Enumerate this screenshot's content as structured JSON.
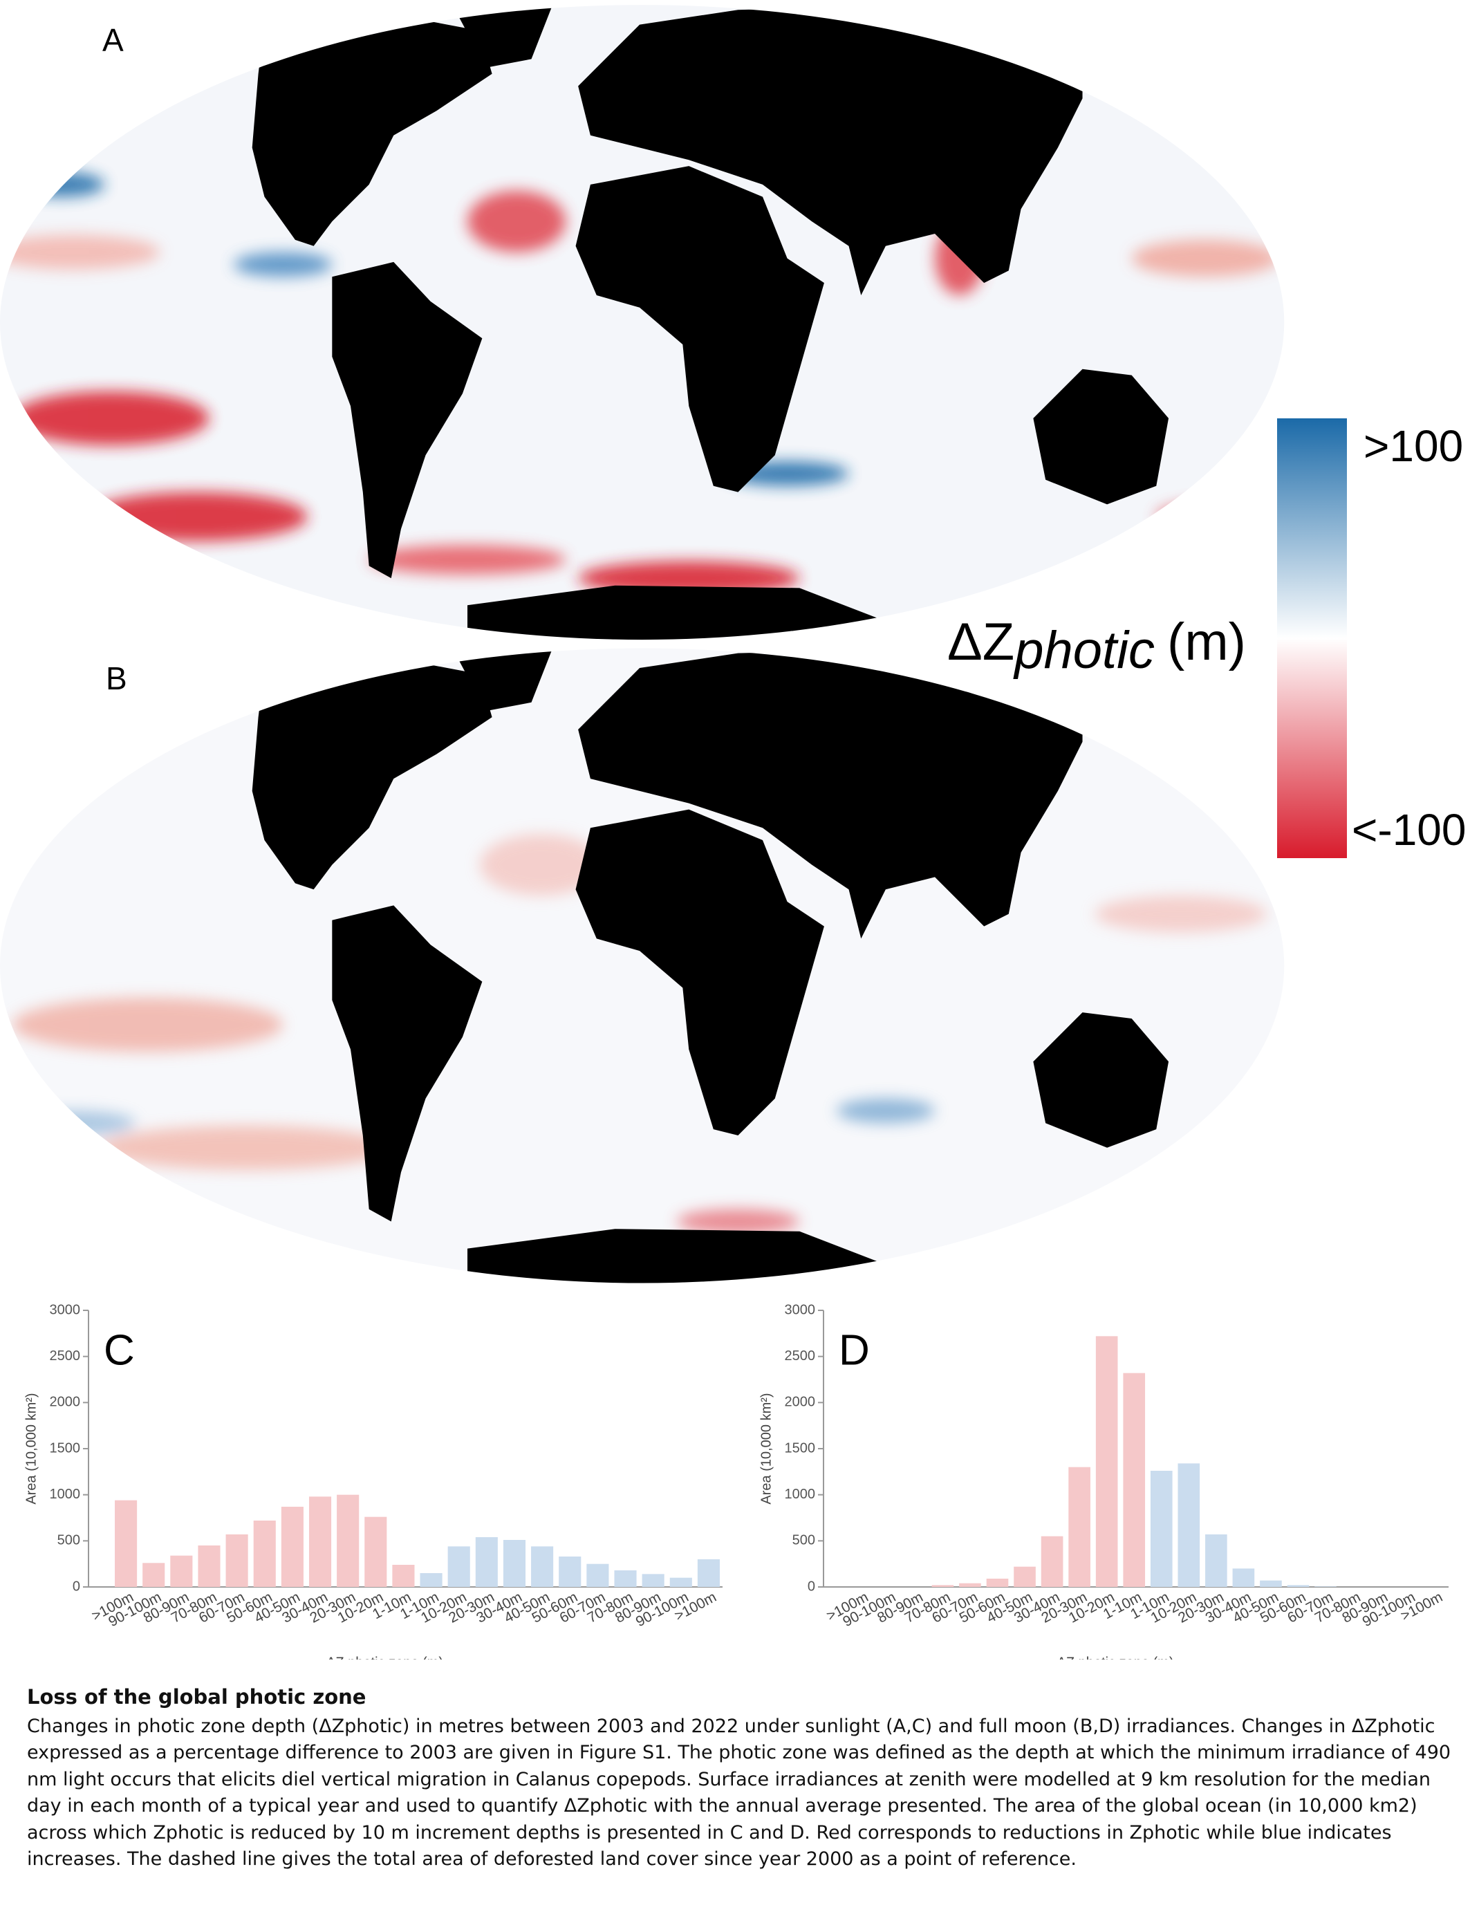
{
  "panels": {
    "a": "A",
    "b": "B"
  },
  "colorbar": {
    "max_label": ">100",
    "min_label": "<-100",
    "label_main": "ΔZ",
    "label_sub": "photic",
    "label_unit": "(m)",
    "colors": [
      "#1b6aa8",
      "#ffffff",
      "#d81b2c"
    ]
  },
  "chart_data": [
    {
      "type": "bar",
      "title": "C",
      "xlabel": "ΔZ photic zone (m)",
      "ylabel": "Area (10,000 km²)",
      "categories": [
        ">100m",
        "90-100m",
        "80-90m",
        "70-80m",
        "60-70m",
        "50-60m",
        "40-50m",
        "30-40m",
        "20-30m",
        "10-20m",
        "1-10m",
        "1-10m",
        "10-20m",
        "20-30m",
        "30-40m",
        "40-50m",
        "50-60m",
        "60-70m",
        "70-80m",
        "80-90m",
        "90-100m",
        ">100m"
      ],
      "values": [
        940,
        260,
        340,
        450,
        570,
        720,
        870,
        980,
        1000,
        760,
        240,
        150,
        440,
        540,
        510,
        440,
        330,
        250,
        180,
        140,
        100,
        300
      ],
      "colors": [
        "#f5c8c9",
        "#f5c8c9",
        "#f5c8c9",
        "#f5c8c9",
        "#f5c8c9",
        "#f5c8c9",
        "#f5c8c9",
        "#f5c8c9",
        "#f5c8c9",
        "#f5c8c9",
        "#f5c8c9",
        "#cadcee",
        "#cadcee",
        "#cadcee",
        "#cadcee",
        "#cadcee",
        "#cadcee",
        "#cadcee",
        "#cadcee",
        "#cadcee",
        "#cadcee",
        "#cadcee"
      ],
      "ylim": [
        0,
        3000
      ],
      "yticks": [
        0,
        500,
        1000,
        1500,
        2000,
        2500,
        3000
      ]
    },
    {
      "type": "bar",
      "title": "D",
      "xlabel": "ΔZ photic zone (m)",
      "ylabel": "Area (10,000 km²)",
      "categories": [
        ">100m",
        "90-100m",
        "80-90m",
        "70-80m",
        "60-70m",
        "50-60m",
        "40-50m",
        "30-40m",
        "20-30m",
        "10-20m",
        "1-10m",
        "1-10m",
        "10-20m",
        "20-30m",
        "30-40m",
        "40-50m",
        "50-60m",
        "60-70m",
        "70-80m",
        "80-90m",
        "90-100m",
        ">100m"
      ],
      "values": [
        0,
        0,
        0,
        20,
        40,
        90,
        220,
        550,
        1300,
        2720,
        2320,
        1260,
        1340,
        570,
        200,
        70,
        20,
        5,
        0,
        0,
        0,
        0
      ],
      "colors": [
        "#f5c8c9",
        "#f5c8c9",
        "#f5c8c9",
        "#f5c8c9",
        "#f5c8c9",
        "#f5c8c9",
        "#f5c8c9",
        "#f5c8c9",
        "#f5c8c9",
        "#f5c8c9",
        "#f5c8c9",
        "#cadcee",
        "#cadcee",
        "#cadcee",
        "#cadcee",
        "#cadcee",
        "#cadcee",
        "#cadcee",
        "#cadcee",
        "#cadcee",
        "#cadcee",
        "#cadcee"
      ],
      "ylim": [
        0,
        3000
      ],
      "yticks": [
        0,
        500,
        1000,
        1500,
        2000,
        2500,
        3000
      ]
    }
  ],
  "caption": {
    "title": "Loss of the global photic zone",
    "text": "Changes in photic zone depth (ΔZphotic) in metres between 2003 and 2022 under sunlight (A,C) and full moon (B,D) irradiances. Changes in ΔZphotic expressed as a percentage difference to 2003 are given in Figure S1. The photic zone was defined as the depth at which the minimum irradiance of 490 nm light occurs that elicits diel vertical migration in Calanus copepods. Surface irradiances at zenith were modelled at 9 km resolution for the median day in each month of a typical year and used to quantify ΔZphotic with the annual average presented. The area of the global ocean (in 10,000 km2) across which Zphotic is reduced by 10 m increment depths is presented in C and D. Red corresponds to reductions in Zphotic while blue indicates increases. The dashed line gives the total area of deforested land cover since year 2000 as a point of reference."
  }
}
